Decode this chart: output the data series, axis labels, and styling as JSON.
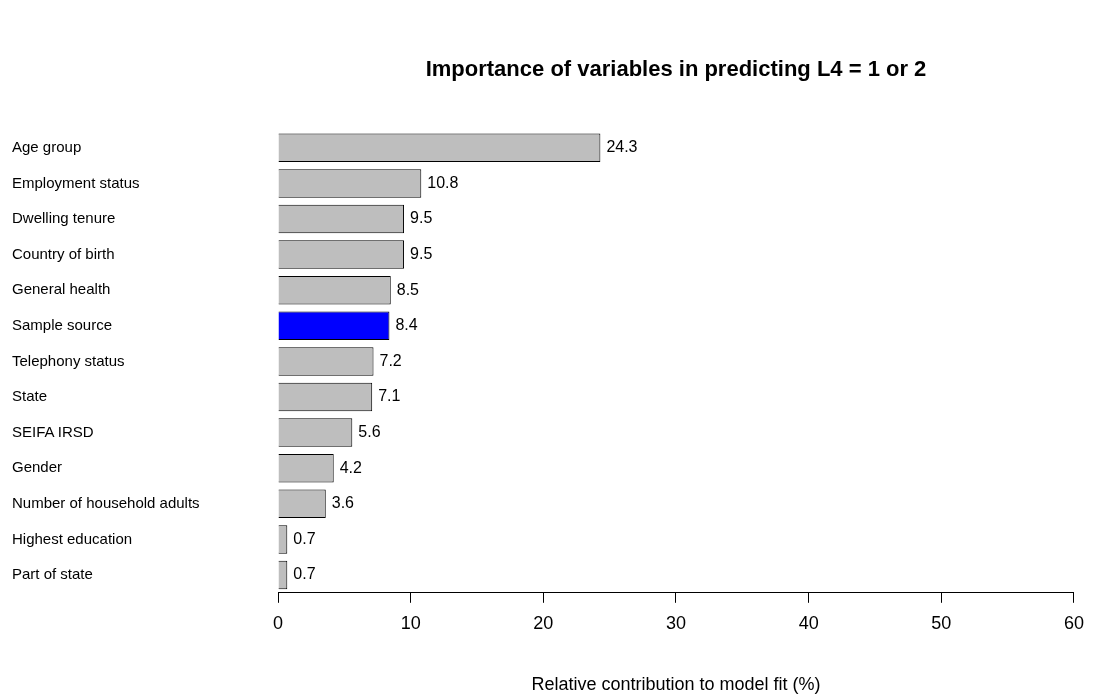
{
  "chart_data": {
    "type": "bar",
    "orientation": "horizontal",
    "title": "Importance of variables in predicting L4 = 1 or 2",
    "xlabel": "Relative contribution to model fit (%)",
    "categories": [
      "Age group",
      "Employment status",
      "Dwelling tenure",
      "Country of birth",
      "General health",
      "Sample source",
      "Telephony status",
      "State",
      "SEIFA IRSD",
      "Gender",
      "Number of household adults",
      "Highest education",
      "Part of state"
    ],
    "values": [
      24.3,
      10.8,
      9.5,
      9.5,
      8.5,
      8.4,
      7.2,
      7.1,
      5.6,
      4.2,
      3.6,
      0.7,
      0.7
    ],
    "colors": [
      "#bebebe",
      "#bebebe",
      "#bebebe",
      "#bebebe",
      "#bebebe",
      "#0000ff",
      "#bebebe",
      "#bebebe",
      "#bebebe",
      "#bebebe",
      "#bebebe",
      "#bebebe",
      "#bebebe"
    ],
    "xlim": [
      0,
      60
    ],
    "xticks": [
      0,
      10,
      20,
      30,
      40,
      50,
      60
    ],
    "grid": false,
    "legend": false,
    "data_labels": true
  }
}
